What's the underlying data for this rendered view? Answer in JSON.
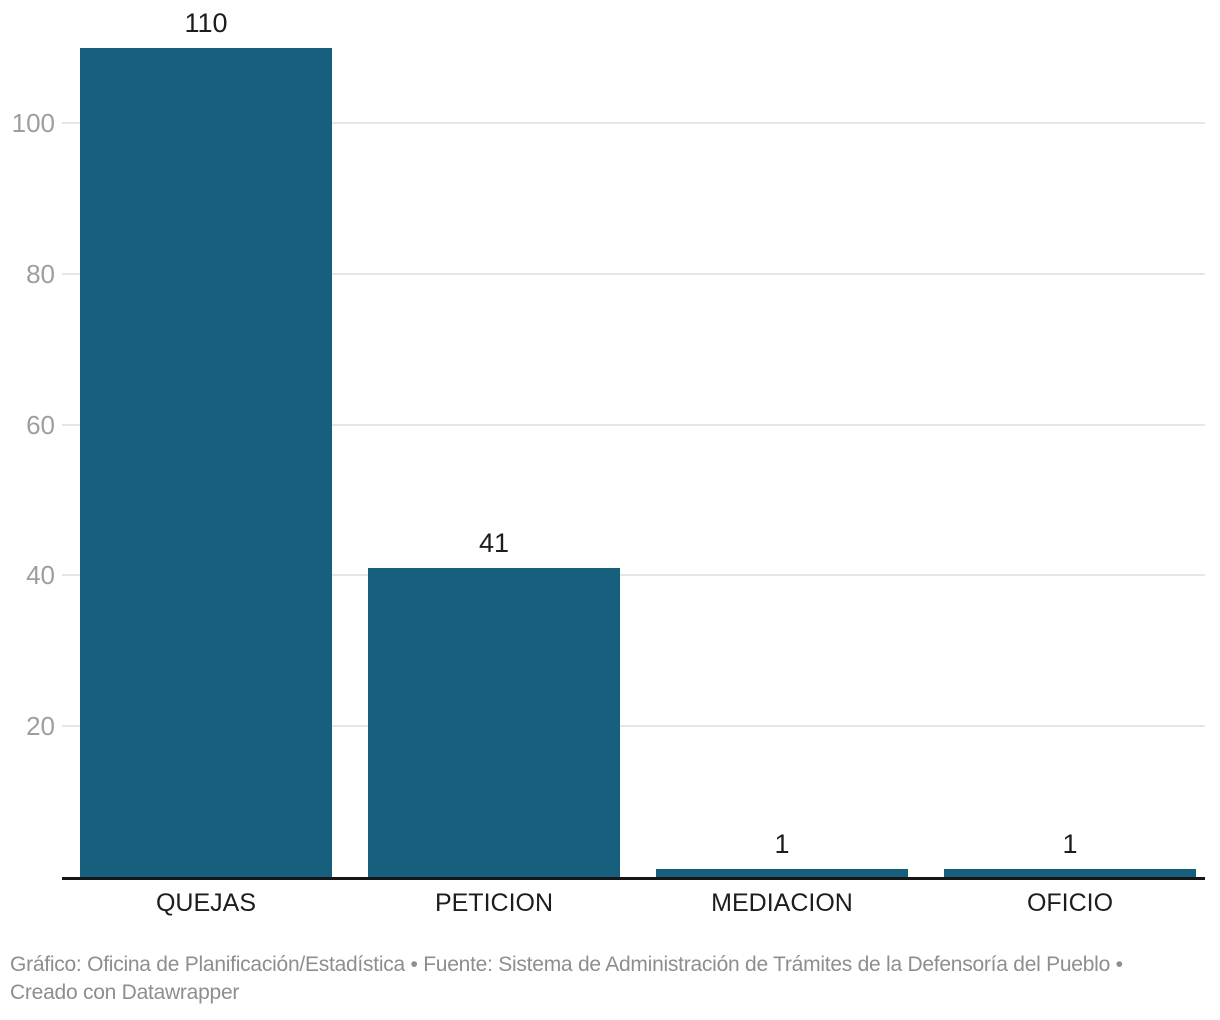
{
  "chart_data": {
    "type": "bar",
    "categories": [
      "QUEJAS",
      "PETICION",
      "MEDIACION",
      "OFICIO"
    ],
    "values": [
      110,
      41,
      1,
      1
    ],
    "title": "",
    "xlabel": "",
    "ylabel": "",
    "ylim": [
      0,
      110
    ],
    "yticks": [
      20,
      40,
      60,
      80,
      100
    ],
    "grid": true,
    "legend_position": "none",
    "bar_color": "#17607d"
  },
  "footer": {
    "line1": "Gráfico: Oficina de Planificación/Estadística • Fuente: Sistema de Administración de Trámites de la Defensoría del Pueblo •",
    "line2": "Creado con Datawrapper"
  },
  "colors": {
    "background": "#ffffff",
    "bar": "#17607d",
    "axis_line": "#161616",
    "gridline": "#e6e6e6",
    "tick_label": "#9e9e9e",
    "text_label": "#1d1d1d",
    "footer_text": "#8e8e8e"
  }
}
